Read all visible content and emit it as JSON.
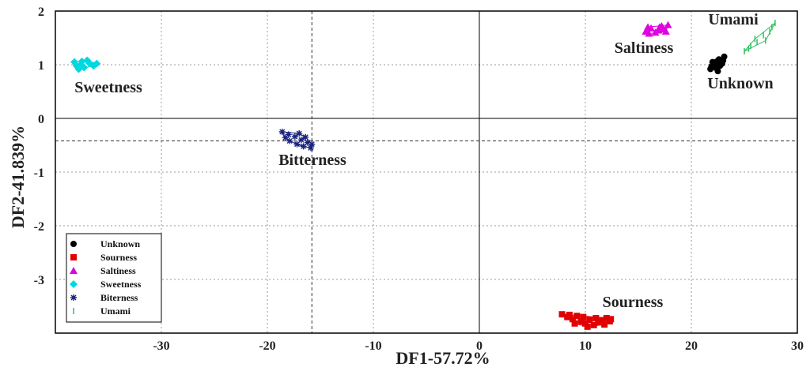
{
  "chart_data": {
    "type": "scatter",
    "xlabel": "DF1-57.72%",
    "ylabel": "DF2-41.839%",
    "xlim": [
      -40,
      30
    ],
    "ylim": [
      -4,
      2
    ],
    "xticks": [
      -30,
      -20,
      -10,
      0,
      10,
      20,
      30
    ],
    "yticks": [
      2,
      1,
      0,
      -1,
      -2,
      -3
    ],
    "grid": true,
    "legend_position": "bottom-left",
    "reference_lines": {
      "x": -15.8,
      "y": -0.42
    },
    "series": [
      {
        "name": "Unknown",
        "label": "Unknown",
        "color": "#000000",
        "marker": "circle",
        "points": [
          [
            22.0,
            1.05
          ],
          [
            22.3,
            0.95
          ],
          [
            22.6,
            1.1
          ],
          [
            22.9,
            1.02
          ],
          [
            21.8,
            0.92
          ],
          [
            22.5,
            0.88
          ],
          [
            23.1,
            1.15
          ],
          [
            22.2,
            1.0
          ],
          [
            22.7,
            0.98
          ],
          [
            21.9,
            0.97
          ],
          [
            22.4,
            1.06
          ],
          [
            23.0,
            1.08
          ]
        ]
      },
      {
        "name": "Sourness",
        "label": "Sourness",
        "color": "#e00000",
        "marker": "square",
        "points": [
          [
            7.8,
            -3.65
          ],
          [
            8.3,
            -3.7
          ],
          [
            8.8,
            -3.74
          ],
          [
            9.2,
            -3.68
          ],
          [
            9.6,
            -3.78
          ],
          [
            10.0,
            -3.82
          ],
          [
            10.4,
            -3.75
          ],
          [
            10.8,
            -3.85
          ],
          [
            11.2,
            -3.8
          ],
          [
            11.6,
            -3.76
          ],
          [
            12.0,
            -3.72
          ],
          [
            12.3,
            -3.78
          ],
          [
            9.0,
            -3.82
          ],
          [
            10.2,
            -3.88
          ],
          [
            11.0,
            -3.72
          ],
          [
            8.5,
            -3.66
          ],
          [
            11.8,
            -3.84
          ],
          [
            12.4,
            -3.74
          ],
          [
            9.8,
            -3.7
          ]
        ]
      },
      {
        "name": "Saltiness",
        "label": "Saltiness",
        "color": "#e000e0",
        "marker": "triangle",
        "points": [
          [
            15.7,
            1.62
          ],
          [
            16.2,
            1.68
          ],
          [
            16.6,
            1.6
          ],
          [
            17.0,
            1.7
          ],
          [
            17.4,
            1.66
          ],
          [
            17.8,
            1.74
          ],
          [
            16.0,
            1.58
          ],
          [
            16.9,
            1.64
          ],
          [
            17.6,
            1.62
          ],
          [
            15.9,
            1.7
          ],
          [
            17.2,
            1.72
          ]
        ]
      },
      {
        "name": "Sweetness",
        "label": "Sweetness",
        "color": "#00d8e0",
        "marker": "diamond",
        "points": [
          [
            -38.2,
            1.05
          ],
          [
            -37.6,
            1.0
          ],
          [
            -37.0,
            1.08
          ],
          [
            -36.4,
            0.98
          ],
          [
            -37.8,
            0.92
          ],
          [
            -36.8,
            1.03
          ],
          [
            -37.3,
            0.95
          ],
          [
            -36.1,
            1.02
          ],
          [
            -38.0,
            0.98
          ],
          [
            -37.5,
            1.06
          ]
        ]
      },
      {
        "name": "Biterness",
        "label": "Bitterness",
        "color": "#1a237e",
        "marker": "star",
        "points": [
          [
            -18.6,
            -0.25
          ],
          [
            -18.0,
            -0.3
          ],
          [
            -17.4,
            -0.34
          ],
          [
            -16.8,
            -0.4
          ],
          [
            -16.2,
            -0.45
          ],
          [
            -15.9,
            -0.55
          ],
          [
            -16.6,
            -0.52
          ],
          [
            -17.2,
            -0.48
          ],
          [
            -17.9,
            -0.42
          ],
          [
            -18.3,
            -0.36
          ],
          [
            -17.0,
            -0.28
          ],
          [
            -16.4,
            -0.35
          ],
          [
            -15.8,
            -0.48
          ]
        ]
      },
      {
        "name": "Umami",
        "label": "Umami",
        "color": "#30c060",
        "marker": "vline",
        "points": [
          [
            25.0,
            1.25
          ],
          [
            25.6,
            1.35
          ],
          [
            26.2,
            1.42
          ],
          [
            26.8,
            1.55
          ],
          [
            27.4,
            1.62
          ],
          [
            27.9,
            1.78
          ],
          [
            26.0,
            1.48
          ],
          [
            27.0,
            1.45
          ],
          [
            25.4,
            1.3
          ],
          [
            27.6,
            1.7
          ]
        ]
      }
    ]
  }
}
